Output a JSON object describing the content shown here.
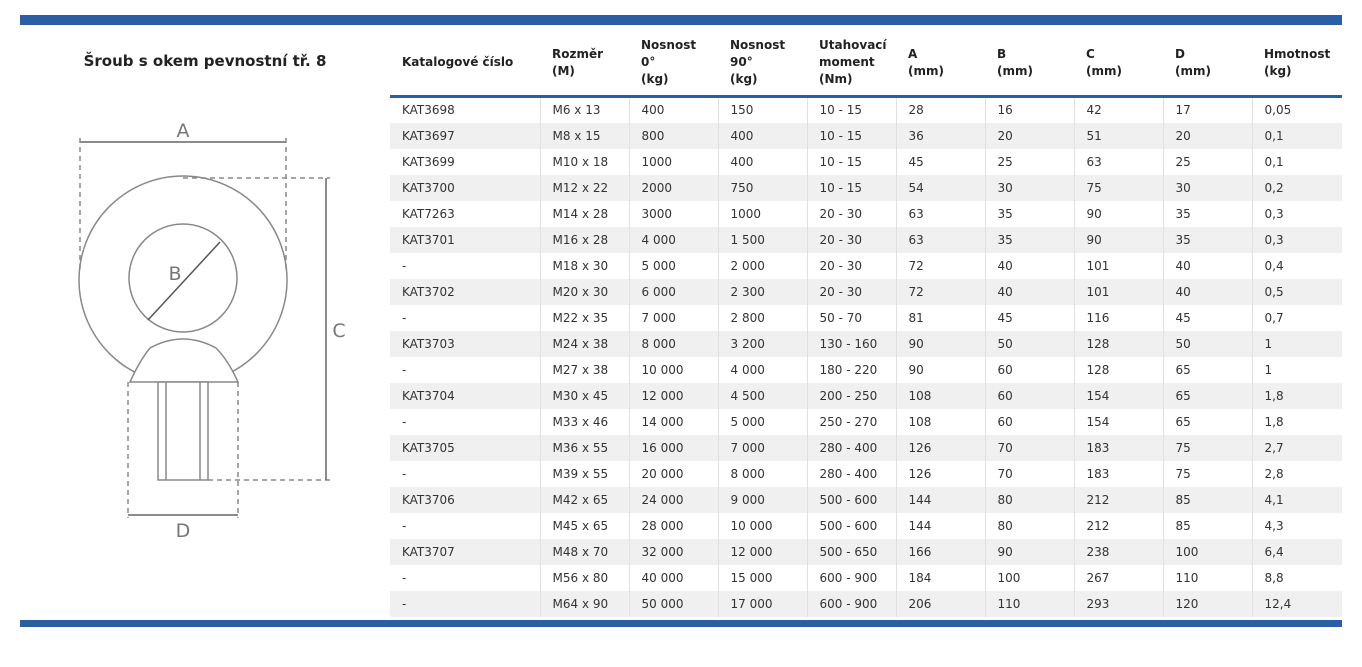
{
  "title": "Šroub s okem pevnostní tř. 8",
  "drawing": {
    "label_a": "A",
    "label_b": "B",
    "label_c": "C",
    "label_d": "D"
  },
  "table": {
    "headers": [
      [
        "Katalogové číslo"
      ],
      [
        "Rozměr",
        "(M)"
      ],
      [
        "Nosnost",
        "0°",
        "(kg)"
      ],
      [
        "Nosnost",
        "90°",
        "(kg)"
      ],
      [
        "Utahovací",
        "moment",
        "(Nm)"
      ],
      [
        "A",
        "(mm)"
      ],
      [
        "B",
        "(mm)"
      ],
      [
        "C",
        "(mm)"
      ],
      [
        "D",
        "(mm)"
      ],
      [
        "Hmotnost",
        "(kg)"
      ]
    ],
    "rows": [
      [
        "KAT3698",
        "M6 x 13",
        "400",
        "150",
        "10 - 15",
        "28",
        "16",
        "42",
        "17",
        "0,05"
      ],
      [
        "KAT3697",
        "M8 x 15",
        "800",
        "400",
        "10 - 15",
        "36",
        "20",
        "51",
        "20",
        "0,1"
      ],
      [
        "KAT3699",
        "M10 x 18",
        "1000",
        "400",
        "10 - 15",
        "45",
        "25",
        "63",
        "25",
        "0,1"
      ],
      [
        "KAT3700",
        "M12 x 22",
        "2000",
        "750",
        "10 - 15",
        "54",
        "30",
        "75",
        "30",
        "0,2"
      ],
      [
        "KAT7263",
        "M14 x 28",
        "3000",
        "1000",
        "20 - 30",
        "63",
        "35",
        "90",
        "35",
        "0,3"
      ],
      [
        "KAT3701",
        "M16 x 28",
        "4 000",
        "1 500",
        "20 - 30",
        "63",
        "35",
        "90",
        "35",
        "0,3"
      ],
      [
        "-",
        "M18 x 30",
        "5 000",
        "2 000",
        "20 - 30",
        "72",
        "40",
        "101",
        "40",
        "0,4"
      ],
      [
        "KAT3702",
        "M20 x 30",
        "6 000",
        "2 300",
        "20 - 30",
        "72",
        "40",
        "101",
        "40",
        "0,5"
      ],
      [
        "-",
        "M22 x 35",
        "7 000",
        "2 800",
        "50 - 70",
        "81",
        "45",
        "116",
        "45",
        "0,7"
      ],
      [
        "KAT3703",
        "M24 x 38",
        "8 000",
        "3 200",
        "130 - 160",
        "90",
        "50",
        "128",
        "50",
        "1"
      ],
      [
        "-",
        "M27 x 38",
        "10 000",
        "4 000",
        "180 - 220",
        "90",
        "60",
        "128",
        "65",
        "1"
      ],
      [
        "KAT3704",
        "M30 x 45",
        "12 000",
        "4 500",
        "200 - 250",
        "108",
        "60",
        "154",
        "65",
        "1,8"
      ],
      [
        "-",
        "M33 x 46",
        "14 000",
        "5 000",
        "250 - 270",
        "108",
        "60",
        "154",
        "65",
        "1,8"
      ],
      [
        "KAT3705",
        "M36 x 55",
        "16 000",
        "7 000",
        "280 - 400",
        "126",
        "70",
        "183",
        "75",
        "2,7"
      ],
      [
        "-",
        "M39 x 55",
        "20 000",
        "8 000",
        "280 - 400",
        "126",
        "70",
        "183",
        "75",
        "2,8"
      ],
      [
        "KAT3706",
        "M42 x 65",
        "24 000",
        "9 000",
        "500 - 600",
        "144",
        "80",
        "212",
        "85",
        "4,1"
      ],
      [
        "-",
        "M45 x 65",
        "28 000",
        "10 000",
        "500 - 600",
        "144",
        "80",
        "212",
        "85",
        "4,3"
      ],
      [
        "KAT3707",
        "M48 x 70",
        "32 000",
        "12 000",
        "500 - 650",
        "166",
        "90",
        "238",
        "100",
        "6,4"
      ],
      [
        "-",
        "M56 x 80",
        "40 000",
        "15 000",
        "600 - 900",
        "184",
        "100",
        "267",
        "110",
        "8,8"
      ],
      [
        "-",
        "M64 x 90",
        "50 000",
        "17 000",
        "600 - 900",
        "206",
        "110",
        "293",
        "120",
        "12,4"
      ]
    ]
  }
}
